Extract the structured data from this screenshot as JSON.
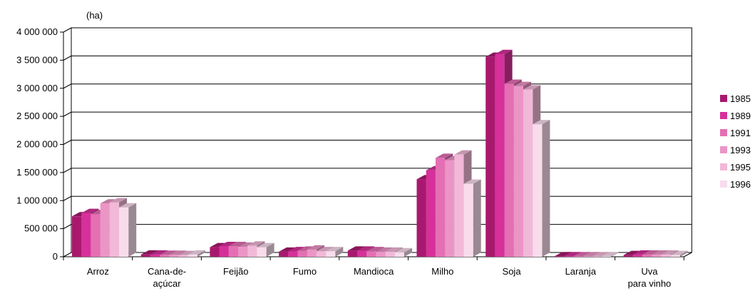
{
  "chart_data": {
    "type": "bar",
    "unit_label": "(ha)",
    "categories": [
      "Arroz",
      "Cana-de-açúcar",
      "Feijão",
      "Fumo",
      "Mandioca",
      "Milho",
      "Soja",
      "Laranja",
      "Uva para vinho"
    ],
    "category_label_lines": [
      [
        "Arroz"
      ],
      [
        "Cana-de-",
        "açúcar"
      ],
      [
        "Feijão"
      ],
      [
        "Fumo"
      ],
      [
        "Mandioca"
      ],
      [
        "Milho"
      ],
      [
        "Soja"
      ],
      [
        "Laranja"
      ],
      [
        "Uva",
        "para vinho"
      ]
    ],
    "series": [
      {
        "name": "1985",
        "color": "#a8196e",
        "values": [
          720000,
          40000,
          170000,
          90000,
          110000,
          1380000,
          3560000,
          10000,
          30000
        ]
      },
      {
        "name": "1989",
        "color": "#d6309a",
        "values": [
          780000,
          40000,
          190000,
          100000,
          110000,
          1540000,
          3610000,
          10000,
          40000
        ]
      },
      {
        "name": "1991",
        "color": "#e46fb3",
        "values": [
          760000,
          35000,
          190000,
          110000,
          100000,
          1760000,
          3080000,
          10000,
          40000
        ]
      },
      {
        "name": "1993",
        "color": "#eb95c6",
        "values": [
          950000,
          35000,
          180000,
          130000,
          90000,
          1720000,
          3040000,
          10000,
          40000
        ]
      },
      {
        "name": "1995",
        "color": "#f2b8d8",
        "values": [
          970000,
          30000,
          200000,
          100000,
          90000,
          1820000,
          2980000,
          10000,
          40000
        ]
      },
      {
        "name": "1996",
        "color": "#f9dcec",
        "values": [
          880000,
          40000,
          170000,
          100000,
          80000,
          1300000,
          2360000,
          10000,
          30000
        ]
      }
    ],
    "yticks": [
      "0",
      "500 000",
      "1 000 000",
      "1 500 000",
      "2 000 000",
      "2 500 000",
      "3 000 000",
      "3 500 000",
      "4 000 000"
    ],
    "ylim": [
      0,
      4000000
    ],
    "ytick_step": 500000,
    "grid": true,
    "legend_position": "right"
  }
}
